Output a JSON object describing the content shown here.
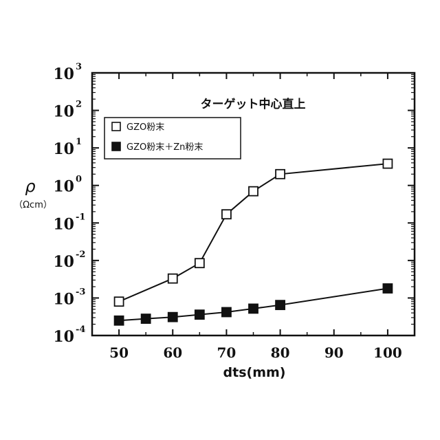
{
  "chart_data": {
    "type": "scatter",
    "title": "",
    "annotation": "ターゲット中心直上",
    "xlabel": "dts(mm)",
    "ylabel_symbol": "ρ",
    "ylabel_unit": "（Ωcm）",
    "xlim": [
      45,
      105
    ],
    "ylim": [
      0.0001,
      1000
    ],
    "yscale": "log",
    "x_ticks": [
      50,
      60,
      70,
      80,
      90,
      100
    ],
    "y_ticks": [
      {
        "value": 0.0001,
        "base": "10",
        "exp": "-4"
      },
      {
        "value": 0.001,
        "base": "10",
        "exp": "-3"
      },
      {
        "value": 0.01,
        "base": "10",
        "exp": "-2"
      },
      {
        "value": 0.1,
        "base": "10",
        "exp": "-1"
      },
      {
        "value": 1,
        "base": "10",
        "exp": "0"
      },
      {
        "value": 10,
        "base": "10",
        "exp": "1"
      },
      {
        "value": 100,
        "base": "10",
        "exp": "2"
      },
      {
        "value": 1000,
        "base": "10",
        "exp": "3"
      }
    ],
    "grid": false,
    "legend_position": "top-left",
    "series": [
      {
        "name": "GZO粉末",
        "marker": "open-square",
        "color": "#111111",
        "points": [
          {
            "x": 50,
            "y": 0.0008
          },
          {
            "x": 60,
            "y": 0.0033
          },
          {
            "x": 65,
            "y": 0.0085
          },
          {
            "x": 70,
            "y": 0.17
          },
          {
            "x": 75,
            "y": 0.7
          },
          {
            "x": 80,
            "y": 2.0
          },
          {
            "x": 100,
            "y": 3.8
          }
        ]
      },
      {
        "name": "GZO粉末＋Zn粉末",
        "marker": "filled-square",
        "color": "#111111",
        "points": [
          {
            "x": 50,
            "y": 0.00025
          },
          {
            "x": 55,
            "y": 0.00028
          },
          {
            "x": 60,
            "y": 0.00031
          },
          {
            "x": 65,
            "y": 0.00036
          },
          {
            "x": 70,
            "y": 0.00042
          },
          {
            "x": 75,
            "y": 0.00052
          },
          {
            "x": 80,
            "y": 0.00065
          },
          {
            "x": 100,
            "y": 0.0018
          }
        ]
      }
    ]
  }
}
